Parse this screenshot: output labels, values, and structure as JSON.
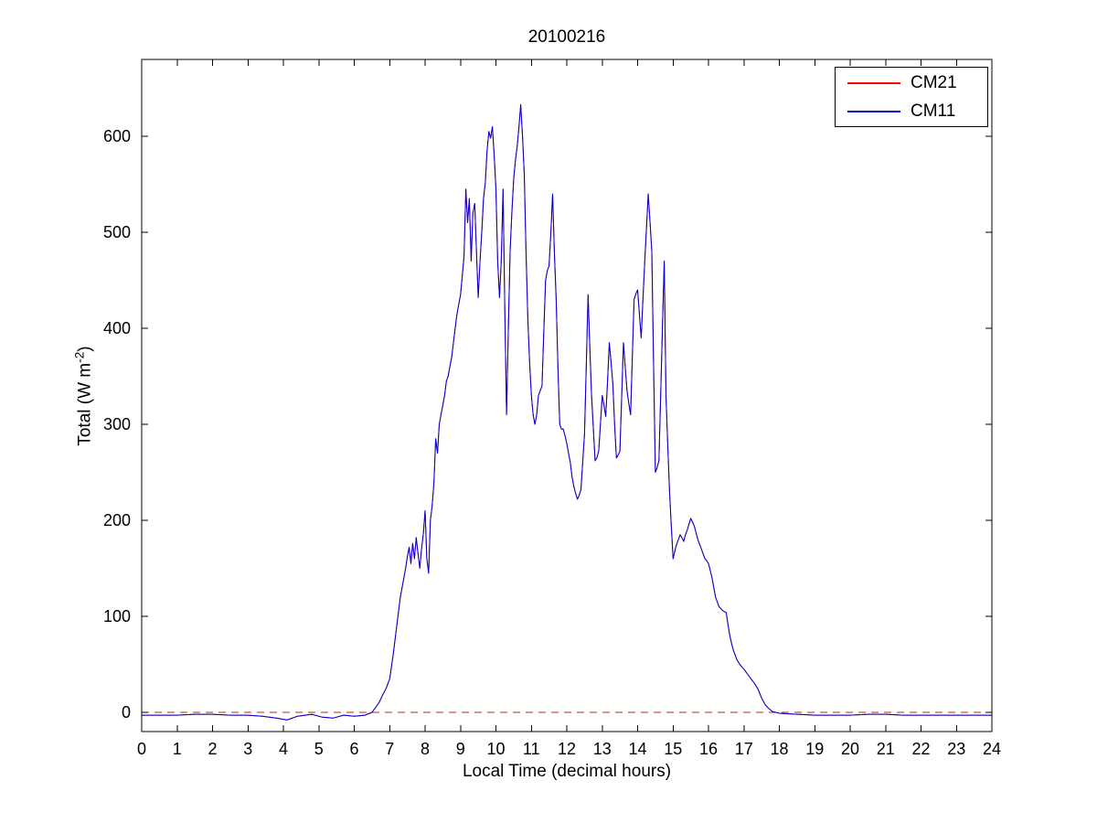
{
  "chart_data": {
    "type": "line",
    "title": "20100216",
    "xlabel": "Local Time (decimal hours)",
    "ylabel": "Total (W m⁻²)",
    "ylabel_parts": {
      "prefix": "Total (W m",
      "sup": "-2",
      "suffix": ")"
    },
    "xlim": [
      0,
      24
    ],
    "ylim": [
      -20,
      680
    ],
    "xticks": [
      0,
      1,
      2,
      3,
      4,
      5,
      6,
      7,
      8,
      9,
      10,
      11,
      12,
      13,
      14,
      15,
      16,
      17,
      18,
      19,
      20,
      21,
      22,
      23,
      24
    ],
    "yticks": [
      0,
      100,
      200,
      300,
      400,
      500,
      600
    ],
    "grid": false,
    "legend_position": "top-right",
    "reference_line": {
      "y": 0,
      "style": "dashed",
      "color": "#aa3311"
    },
    "x": [
      0,
      0.5,
      1,
      1.5,
      2,
      2.5,
      3,
      3.4,
      3.8,
      4.1,
      4.4,
      4.8,
      5.1,
      5.4,
      5.7,
      6.0,
      6.3,
      6.5,
      6.6,
      6.7,
      6.8,
      6.9,
      7.0,
      7.1,
      7.2,
      7.3,
      7.4,
      7.45,
      7.5,
      7.55,
      7.6,
      7.65,
      7.7,
      7.75,
      7.8,
      7.85,
      7.9,
      7.95,
      8.0,
      8.05,
      8.1,
      8.15,
      8.2,
      8.25,
      8.3,
      8.35,
      8.4,
      8.45,
      8.5,
      8.55,
      8.6,
      8.65,
      8.7,
      8.75,
      8.8,
      8.85,
      8.9,
      8.95,
      9.0,
      9.05,
      9.1,
      9.15,
      9.2,
      9.25,
      9.3,
      9.35,
      9.4,
      9.45,
      9.5,
      9.55,
      9.6,
      9.65,
      9.7,
      9.75,
      9.8,
      9.85,
      9.9,
      9.95,
      10.0,
      10.05,
      10.1,
      10.15,
      10.2,
      10.25,
      10.3,
      10.35,
      10.4,
      10.45,
      10.5,
      10.55,
      10.6,
      10.65,
      10.7,
      10.75,
      10.8,
      10.85,
      10.9,
      10.95,
      11.0,
      11.05,
      11.1,
      11.15,
      11.2,
      11.25,
      11.3,
      11.35,
      11.4,
      11.45,
      11.5,
      11.55,
      11.6,
      11.65,
      11.7,
      11.75,
      11.8,
      11.85,
      11.9,
      11.95,
      12.0,
      12.05,
      12.1,
      12.15,
      12.2,
      12.25,
      12.3,
      12.35,
      12.4,
      12.45,
      12.5,
      12.55,
      12.6,
      12.65,
      12.7,
      12.75,
      12.8,
      12.85,
      12.9,
      12.95,
      13.0,
      13.05,
      13.1,
      13.15,
      13.2,
      13.25,
      13.3,
      13.35,
      13.4,
      13.45,
      13.5,
      13.55,
      13.6,
      13.65,
      13.7,
      13.75,
      13.8,
      13.85,
      13.9,
      13.95,
      14.0,
      14.05,
      14.1,
      14.15,
      14.2,
      14.25,
      14.3,
      14.35,
      14.4,
      14.45,
      14.5,
      14.55,
      14.6,
      14.65,
      14.7,
      14.75,
      14.8,
      14.85,
      14.9,
      14.95,
      15.0,
      15.05,
      15.1,
      15.15,
      15.2,
      15.25,
      15.3,
      15.35,
      15.4,
      15.45,
      15.5,
      15.55,
      15.6,
      15.65,
      15.7,
      15.75,
      15.8,
      15.85,
      15.9,
      15.95,
      16.0,
      16.05,
      16.1,
      16.15,
      16.2,
      16.25,
      16.3,
      16.35,
      16.4,
      16.45,
      16.5,
      16.55,
      16.6,
      16.65,
      16.7,
      16.75,
      16.8,
      16.85,
      16.9,
      16.95,
      17.0,
      17.1,
      17.2,
      17.3,
      17.4,
      17.5,
      17.6,
      17.7,
      17.8,
      17.9,
      18.0,
      18.5,
      19,
      19.5,
      20,
      20.5,
      21,
      21.5,
      22,
      22.5,
      23,
      23.5,
      24
    ],
    "series": [
      {
        "name": "CM21",
        "color": "#ff0000",
        "values": [
          -3,
          -3,
          -3,
          -2,
          -2,
          -3,
          -3,
          -4,
          -6,
          -8,
          -4,
          -2,
          -5,
          -6,
          -3,
          -4,
          -3,
          0,
          5,
          10,
          18,
          25,
          35,
          60,
          90,
          120,
          140,
          150,
          162,
          172,
          155,
          176,
          160,
          182,
          165,
          150,
          170,
          186,
          210,
          160,
          145,
          200,
          215,
          240,
          285,
          270,
          300,
          310,
          320,
          330,
          345,
          350,
          360,
          370,
          385,
          400,
          415,
          425,
          435,
          455,
          475,
          545,
          510,
          535,
          470,
          520,
          530,
          480,
          432,
          470,
          500,
          535,
          552,
          585,
          605,
          598,
          610,
          580,
          545,
          470,
          432,
          470,
          545,
          420,
          310,
          400,
          480,
          520,
          555,
          575,
          590,
          610,
          633,
          600,
          560,
          480,
          410,
          365,
          330,
          310,
          300,
          310,
          330,
          335,
          340,
          395,
          450,
          460,
          465,
          500,
          540,
          480,
          430,
          360,
          300,
          295,
          295,
          288,
          280,
          270,
          260,
          245,
          235,
          228,
          222,
          226,
          232,
          260,
          290,
          360,
          435,
          380,
          330,
          295,
          262,
          265,
          272,
          300,
          330,
          320,
          308,
          345,
          385,
          365,
          342,
          300,
          265,
          268,
          272,
          330,
          385,
          360,
          335,
          322,
          310,
          370,
          430,
          436,
          440,
          415,
          390,
          430,
          470,
          505,
          540,
          510,
          480,
          365,
          250,
          255,
          262,
          330,
          400,
          470,
          330,
          280,
          230,
          195,
          160,
          168,
          175,
          180,
          185,
          182,
          178,
          185,
          190,
          196,
          202,
          198,
          194,
          187,
          180,
          175,
          170,
          165,
          160,
          158,
          155,
          148,
          140,
          130,
          120,
          115,
          110,
          108,
          106,
          105,
          104,
          92,
          80,
          72,
          65,
          60,
          55,
          52,
          49,
          47,
          45,
          40,
          35,
          30,
          24,
          15,
          8,
          4,
          1,
          0,
          -1,
          -2,
          -3,
          -3,
          -3,
          -2,
          -2,
          -3,
          -3,
          -3,
          -3,
          -3,
          -3
        ]
      },
      {
        "name": "CM11",
        "color": "#0000dd",
        "values": [
          -3,
          -3,
          -3,
          -2,
          -2,
          -3,
          -3,
          -4,
          -6,
          -8,
          -4,
          -2,
          -5,
          -6,
          -3,
          -4,
          -3,
          0,
          5,
          10,
          18,
          25,
          35,
          60,
          90,
          120,
          140,
          150,
          162,
          172,
          155,
          176,
          160,
          182,
          165,
          150,
          170,
          186,
          210,
          160,
          145,
          200,
          215,
          240,
          285,
          270,
          300,
          310,
          320,
          330,
          345,
          350,
          360,
          370,
          385,
          400,
          415,
          425,
          435,
          455,
          475,
          545,
          510,
          535,
          470,
          520,
          530,
          480,
          432,
          470,
          500,
          535,
          552,
          585,
          605,
          598,
          610,
          580,
          545,
          470,
          432,
          470,
          545,
          420,
          310,
          400,
          480,
          520,
          555,
          575,
          590,
          610,
          633,
          600,
          560,
          480,
          410,
          365,
          330,
          310,
          300,
          310,
          330,
          335,
          340,
          395,
          450,
          460,
          465,
          500,
          540,
          480,
          430,
          360,
          300,
          295,
          295,
          288,
          280,
          270,
          260,
          245,
          235,
          228,
          222,
          226,
          232,
          260,
          290,
          360,
          435,
          380,
          330,
          295,
          262,
          265,
          272,
          300,
          330,
          320,
          308,
          345,
          385,
          365,
          342,
          300,
          265,
          268,
          272,
          330,
          385,
          360,
          335,
          322,
          310,
          370,
          430,
          436,
          440,
          415,
          390,
          430,
          470,
          505,
          540,
          510,
          480,
          365,
          250,
          255,
          262,
          330,
          400,
          470,
          330,
          280,
          230,
          195,
          160,
          168,
          175,
          180,
          185,
          182,
          178,
          185,
          190,
          196,
          202,
          198,
          194,
          187,
          180,
          175,
          170,
          165,
          160,
          158,
          155,
          148,
          140,
          130,
          120,
          115,
          110,
          108,
          106,
          105,
          104,
          92,
          80,
          72,
          65,
          60,
          55,
          52,
          49,
          47,
          45,
          40,
          35,
          30,
          24,
          15,
          8,
          4,
          1,
          0,
          -1,
          -2,
          -3,
          -3,
          -3,
          -2,
          -2,
          -3,
          -3,
          -3,
          -3,
          -3,
          -3
        ]
      }
    ]
  }
}
